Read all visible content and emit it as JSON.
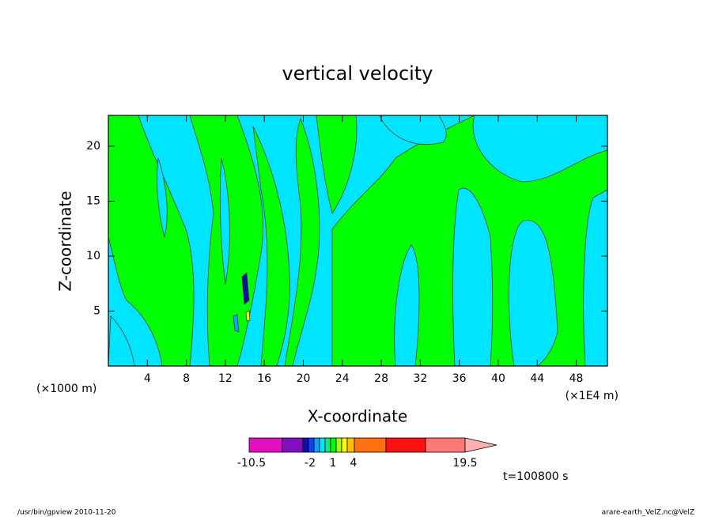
{
  "chart_data": {
    "type": "contour",
    "title": "vertical velocity",
    "x_label": "X-coordinate",
    "y_label": "Z-coordinate",
    "x_unit_left": "(×1000 m)",
    "x_unit_right": "(×1E4 m)",
    "xlim": [
      0,
      51.2
    ],
    "xticks": [
      4,
      8,
      12,
      16,
      20,
      24,
      28,
      32,
      36,
      40,
      44,
      48
    ],
    "ylim": [
      0,
      22.8
    ],
    "yticks": [
      5,
      10,
      15,
      20
    ],
    "colorbar": {
      "colors": [
        "#e010c0",
        "#8010c0",
        "#1010a0",
        "#1040ff",
        "#10a0ff",
        "#00e5ff",
        "#10e880",
        "#00ff00",
        "#a0ff10",
        "#ffff00",
        "#ffc000",
        "#ff7010",
        "#ff1010",
        "#ff7878",
        "#ffb0b0"
      ],
      "labels": [
        -10.5,
        -2,
        1,
        4,
        19.5
      ]
    },
    "time_label": "t=100800 s",
    "footer_left": "/usr/bin/gpview   2010-11-20",
    "footer_right": "arare-earth_VelZ.nc@VelZ"
  }
}
